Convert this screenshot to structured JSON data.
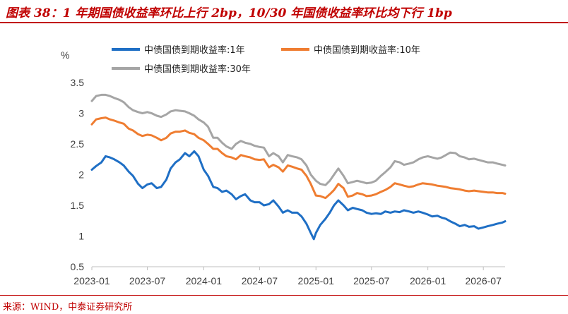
{
  "figure": {
    "title": "图表 38：1 年期国债收益率环比上行 2bp，10/30 年国债收益率环比均下行 1bp",
    "source": "来源：WIND，中泰证券研究所"
  },
  "colors": {
    "title_red": "#c00000",
    "series_1y": "#1f6fc5",
    "series_10y": "#ef7d31",
    "series_30y": "#a5a5a5"
  },
  "chart_data": {
    "type": "line",
    "ylabel": "%",
    "ylim": [
      0.5,
      3.5
    ],
    "yticks": [
      0.5,
      1,
      1.5,
      2,
      2.5,
      3,
      3.5
    ],
    "ytick_labels": [
      "0.5",
      "1",
      "1.5",
      "2",
      "2.5",
      "3",
      "3.5"
    ],
    "xlim": [
      "2023-01-01",
      "2026-09-10"
    ],
    "xticks": [
      "2023-01-01",
      "2023-07-01",
      "2024-01-01",
      "2024-07-01",
      "2025-01-01",
      "2025-07-01",
      "2026-01-01",
      "2026-07-01"
    ],
    "xtick_labels": [
      "2023-01",
      "2023-07",
      "2024-01",
      "2024-07",
      "2025-01",
      "2025-07",
      "2026-01",
      "2026-07"
    ],
    "grid": false,
    "legend_position": "top",
    "series": [
      {
        "name": "中债国债到期收益率:1年",
        "color": "#1f6fc5",
        "points": [
          [
            "2023-01-01",
            2.08
          ],
          [
            "2023-01-15",
            2.14
          ],
          [
            "2023-02-01",
            2.2
          ],
          [
            "2023-02-15",
            2.3
          ],
          [
            "2023-03-01",
            2.28
          ],
          [
            "2023-03-15",
            2.25
          ],
          [
            "2023-04-01",
            2.2
          ],
          [
            "2023-04-15",
            2.15
          ],
          [
            "2023-05-01",
            2.05
          ],
          [
            "2023-05-15",
            1.98
          ],
          [
            "2023-06-01",
            1.85
          ],
          [
            "2023-06-15",
            1.78
          ],
          [
            "2023-07-01",
            1.84
          ],
          [
            "2023-07-15",
            1.86
          ],
          [
            "2023-08-01",
            1.78
          ],
          [
            "2023-08-15",
            1.8
          ],
          [
            "2023-09-01",
            1.92
          ],
          [
            "2023-09-15",
            2.1
          ],
          [
            "2023-10-01",
            2.2
          ],
          [
            "2023-10-15",
            2.25
          ],
          [
            "2023-11-01",
            2.35
          ],
          [
            "2023-11-15",
            2.3
          ],
          [
            "2023-12-01",
            2.38
          ],
          [
            "2023-12-15",
            2.3
          ],
          [
            "2024-01-01",
            2.08
          ],
          [
            "2024-01-15",
            1.98
          ],
          [
            "2024-02-01",
            1.8
          ],
          [
            "2024-02-15",
            1.78
          ],
          [
            "2024-03-01",
            1.72
          ],
          [
            "2024-03-15",
            1.74
          ],
          [
            "2024-04-01",
            1.68
          ],
          [
            "2024-04-15",
            1.6
          ],
          [
            "2024-05-01",
            1.65
          ],
          [
            "2024-05-15",
            1.68
          ],
          [
            "2024-06-01",
            1.58
          ],
          [
            "2024-06-15",
            1.55
          ],
          [
            "2024-07-01",
            1.55
          ],
          [
            "2024-07-15",
            1.5
          ],
          [
            "2024-08-01",
            1.52
          ],
          [
            "2024-08-15",
            1.58
          ],
          [
            "2024-09-01",
            1.48
          ],
          [
            "2024-09-15",
            1.38
          ],
          [
            "2024-10-01",
            1.42
          ],
          [
            "2024-10-15",
            1.38
          ],
          [
            "2024-11-01",
            1.38
          ],
          [
            "2024-11-15",
            1.32
          ],
          [
            "2024-12-01",
            1.2
          ],
          [
            "2024-12-15",
            1.05
          ],
          [
            "2024-12-25",
            0.95
          ],
          [
            "2025-01-01",
            1.05
          ],
          [
            "2025-01-15",
            1.18
          ],
          [
            "2025-02-01",
            1.28
          ],
          [
            "2025-02-15",
            1.38
          ],
          [
            "2025-03-01",
            1.5
          ],
          [
            "2025-03-15",
            1.58
          ],
          [
            "2025-04-01",
            1.5
          ],
          [
            "2025-04-15",
            1.42
          ],
          [
            "2025-05-01",
            1.46
          ],
          [
            "2025-05-15",
            1.44
          ],
          [
            "2025-06-01",
            1.42
          ],
          [
            "2025-06-15",
            1.38
          ],
          [
            "2025-07-01",
            1.36
          ],
          [
            "2025-07-15",
            1.37
          ],
          [
            "2025-08-01",
            1.36
          ],
          [
            "2025-08-15",
            1.4
          ],
          [
            "2025-09-01",
            1.38
          ],
          [
            "2025-09-15",
            1.4
          ],
          [
            "2025-10-01",
            1.39
          ],
          [
            "2025-10-15",
            1.42
          ],
          [
            "2025-11-01",
            1.4
          ],
          [
            "2025-11-15",
            1.38
          ],
          [
            "2025-12-01",
            1.4
          ],
          [
            "2025-12-15",
            1.38
          ],
          [
            "2026-01-01",
            1.35
          ],
          [
            "2026-01-15",
            1.32
          ],
          [
            "2026-02-01",
            1.33
          ],
          [
            "2026-02-15",
            1.3
          ],
          [
            "2026-03-01",
            1.28
          ],
          [
            "2026-03-15",
            1.24
          ],
          [
            "2026-04-01",
            1.2
          ],
          [
            "2026-04-15",
            1.16
          ],
          [
            "2026-05-01",
            1.18
          ],
          [
            "2026-05-15",
            1.15
          ],
          [
            "2026-06-01",
            1.16
          ],
          [
            "2026-06-15",
            1.12
          ],
          [
            "2026-07-01",
            1.14
          ],
          [
            "2026-07-15",
            1.16
          ],
          [
            "2026-08-01",
            1.18
          ],
          [
            "2026-08-15",
            1.2
          ],
          [
            "2026-09-01",
            1.22
          ],
          [
            "2026-09-10",
            1.24
          ]
        ]
      },
      {
        "name": "中债国债到期收益率:10年",
        "color": "#ef7d31",
        "points": [
          [
            "2023-01-01",
            2.82
          ],
          [
            "2023-01-15",
            2.9
          ],
          [
            "2023-02-01",
            2.92
          ],
          [
            "2023-02-15",
            2.93
          ],
          [
            "2023-03-01",
            2.9
          ],
          [
            "2023-03-15",
            2.88
          ],
          [
            "2023-04-01",
            2.85
          ],
          [
            "2023-04-15",
            2.83
          ],
          [
            "2023-05-01",
            2.75
          ],
          [
            "2023-05-15",
            2.72
          ],
          [
            "2023-06-01",
            2.66
          ],
          [
            "2023-06-15",
            2.63
          ],
          [
            "2023-07-01",
            2.65
          ],
          [
            "2023-07-15",
            2.64
          ],
          [
            "2023-08-01",
            2.6
          ],
          [
            "2023-08-15",
            2.56
          ],
          [
            "2023-09-01",
            2.6
          ],
          [
            "2023-09-15",
            2.67
          ],
          [
            "2023-10-01",
            2.7
          ],
          [
            "2023-10-15",
            2.7
          ],
          [
            "2023-11-01",
            2.72
          ],
          [
            "2023-11-15",
            2.68
          ],
          [
            "2023-12-01",
            2.66
          ],
          [
            "2023-12-15",
            2.6
          ],
          [
            "2024-01-01",
            2.56
          ],
          [
            "2024-01-15",
            2.5
          ],
          [
            "2024-02-01",
            2.42
          ],
          [
            "2024-02-15",
            2.42
          ],
          [
            "2024-03-01",
            2.35
          ],
          [
            "2024-03-15",
            2.3
          ],
          [
            "2024-04-01",
            2.28
          ],
          [
            "2024-04-15",
            2.25
          ],
          [
            "2024-05-01",
            2.32
          ],
          [
            "2024-05-15",
            2.3
          ],
          [
            "2024-06-01",
            2.28
          ],
          [
            "2024-06-15",
            2.25
          ],
          [
            "2024-07-01",
            2.24
          ],
          [
            "2024-07-15",
            2.25
          ],
          [
            "2024-08-01",
            2.12
          ],
          [
            "2024-08-15",
            2.16
          ],
          [
            "2024-09-01",
            2.12
          ],
          [
            "2024-09-15",
            2.05
          ],
          [
            "2024-10-01",
            2.15
          ],
          [
            "2024-10-15",
            2.13
          ],
          [
            "2024-11-01",
            2.1
          ],
          [
            "2024-11-15",
            2.08
          ],
          [
            "2024-12-01",
            1.98
          ],
          [
            "2024-12-15",
            1.85
          ],
          [
            "2025-01-01",
            1.66
          ],
          [
            "2025-01-15",
            1.65
          ],
          [
            "2025-02-01",
            1.62
          ],
          [
            "2025-02-15",
            1.68
          ],
          [
            "2025-03-01",
            1.75
          ],
          [
            "2025-03-15",
            1.85
          ],
          [
            "2025-04-01",
            1.78
          ],
          [
            "2025-04-15",
            1.64
          ],
          [
            "2025-05-01",
            1.66
          ],
          [
            "2025-05-15",
            1.7
          ],
          [
            "2025-06-01",
            1.68
          ],
          [
            "2025-06-15",
            1.65
          ],
          [
            "2025-07-01",
            1.66
          ],
          [
            "2025-07-15",
            1.68
          ],
          [
            "2025-08-01",
            1.72
          ],
          [
            "2025-08-15",
            1.75
          ],
          [
            "2025-09-01",
            1.8
          ],
          [
            "2025-09-15",
            1.86
          ],
          [
            "2025-10-01",
            1.84
          ],
          [
            "2025-10-15",
            1.82
          ],
          [
            "2025-11-01",
            1.8
          ],
          [
            "2025-11-15",
            1.81
          ],
          [
            "2025-12-01",
            1.84
          ],
          [
            "2025-12-15",
            1.86
          ],
          [
            "2026-01-01",
            1.85
          ],
          [
            "2026-01-15",
            1.84
          ],
          [
            "2026-02-01",
            1.82
          ],
          [
            "2026-02-15",
            1.81
          ],
          [
            "2026-03-01",
            1.8
          ],
          [
            "2026-03-15",
            1.78
          ],
          [
            "2026-04-01",
            1.77
          ],
          [
            "2026-04-15",
            1.76
          ],
          [
            "2026-05-01",
            1.74
          ],
          [
            "2026-05-15",
            1.73
          ],
          [
            "2026-06-01",
            1.74
          ],
          [
            "2026-06-15",
            1.73
          ],
          [
            "2026-07-01",
            1.72
          ],
          [
            "2026-07-15",
            1.71
          ],
          [
            "2026-08-01",
            1.71
          ],
          [
            "2026-08-15",
            1.7
          ],
          [
            "2026-09-01",
            1.7
          ],
          [
            "2026-09-10",
            1.69
          ]
        ]
      },
      {
        "name": "中债国债到期收益率:30年",
        "color": "#a5a5a5",
        "points": [
          [
            "2023-01-01",
            3.2
          ],
          [
            "2023-01-15",
            3.28
          ],
          [
            "2023-02-01",
            3.3
          ],
          [
            "2023-02-15",
            3.3
          ],
          [
            "2023-03-01",
            3.28
          ],
          [
            "2023-03-15",
            3.25
          ],
          [
            "2023-04-01",
            3.22
          ],
          [
            "2023-04-15",
            3.18
          ],
          [
            "2023-05-01",
            3.1
          ],
          [
            "2023-05-15",
            3.05
          ],
          [
            "2023-06-01",
            3.02
          ],
          [
            "2023-06-15",
            3.0
          ],
          [
            "2023-07-01",
            3.02
          ],
          [
            "2023-07-15",
            3.0
          ],
          [
            "2023-08-01",
            2.96
          ],
          [
            "2023-08-15",
            2.94
          ],
          [
            "2023-09-01",
            2.98
          ],
          [
            "2023-09-15",
            3.03
          ],
          [
            "2023-10-01",
            3.05
          ],
          [
            "2023-10-15",
            3.04
          ],
          [
            "2023-11-01",
            3.03
          ],
          [
            "2023-11-15",
            3.0
          ],
          [
            "2023-12-01",
            2.96
          ],
          [
            "2023-12-15",
            2.9
          ],
          [
            "2024-01-01",
            2.85
          ],
          [
            "2024-01-15",
            2.78
          ],
          [
            "2024-02-01",
            2.6
          ],
          [
            "2024-02-15",
            2.6
          ],
          [
            "2024-03-01",
            2.52
          ],
          [
            "2024-03-15",
            2.46
          ],
          [
            "2024-04-01",
            2.42
          ],
          [
            "2024-04-15",
            2.5
          ],
          [
            "2024-05-01",
            2.55
          ],
          [
            "2024-05-15",
            2.52
          ],
          [
            "2024-06-01",
            2.5
          ],
          [
            "2024-06-15",
            2.47
          ],
          [
            "2024-07-01",
            2.45
          ],
          [
            "2024-07-15",
            2.44
          ],
          [
            "2024-08-01",
            2.3
          ],
          [
            "2024-08-15",
            2.35
          ],
          [
            "2024-09-01",
            2.3
          ],
          [
            "2024-09-15",
            2.2
          ],
          [
            "2024-10-01",
            2.32
          ],
          [
            "2024-10-15",
            2.3
          ],
          [
            "2024-11-01",
            2.28
          ],
          [
            "2024-11-15",
            2.25
          ],
          [
            "2024-12-01",
            2.15
          ],
          [
            "2024-12-15",
            2.0
          ],
          [
            "2025-01-01",
            1.9
          ],
          [
            "2025-01-15",
            1.85
          ],
          [
            "2025-02-01",
            1.83
          ],
          [
            "2025-02-15",
            1.9
          ],
          [
            "2025-03-01",
            2.0
          ],
          [
            "2025-03-15",
            2.1
          ],
          [
            "2025-04-01",
            1.98
          ],
          [
            "2025-04-15",
            1.86
          ],
          [
            "2025-05-01",
            1.88
          ],
          [
            "2025-05-15",
            1.9
          ],
          [
            "2025-06-01",
            1.88
          ],
          [
            "2025-06-15",
            1.86
          ],
          [
            "2025-07-01",
            1.87
          ],
          [
            "2025-07-15",
            1.9
          ],
          [
            "2025-08-01",
            1.98
          ],
          [
            "2025-08-15",
            2.04
          ],
          [
            "2025-09-01",
            2.12
          ],
          [
            "2025-09-15",
            2.22
          ],
          [
            "2025-10-01",
            2.2
          ],
          [
            "2025-10-15",
            2.16
          ],
          [
            "2025-11-01",
            2.18
          ],
          [
            "2025-11-15",
            2.2
          ],
          [
            "2025-12-01",
            2.25
          ],
          [
            "2025-12-15",
            2.28
          ],
          [
            "2026-01-01",
            2.3
          ],
          [
            "2026-01-15",
            2.28
          ],
          [
            "2026-02-01",
            2.26
          ],
          [
            "2026-02-15",
            2.28
          ],
          [
            "2026-03-01",
            2.32
          ],
          [
            "2026-03-15",
            2.36
          ],
          [
            "2026-04-01",
            2.35
          ],
          [
            "2026-04-15",
            2.3
          ],
          [
            "2026-05-01",
            2.28
          ],
          [
            "2026-05-15",
            2.25
          ],
          [
            "2026-06-01",
            2.26
          ],
          [
            "2026-06-15",
            2.24
          ],
          [
            "2026-07-01",
            2.22
          ],
          [
            "2026-07-15",
            2.2
          ],
          [
            "2026-08-01",
            2.2
          ],
          [
            "2026-08-15",
            2.18
          ],
          [
            "2026-09-01",
            2.16
          ],
          [
            "2026-09-10",
            2.15
          ]
        ]
      }
    ]
  }
}
